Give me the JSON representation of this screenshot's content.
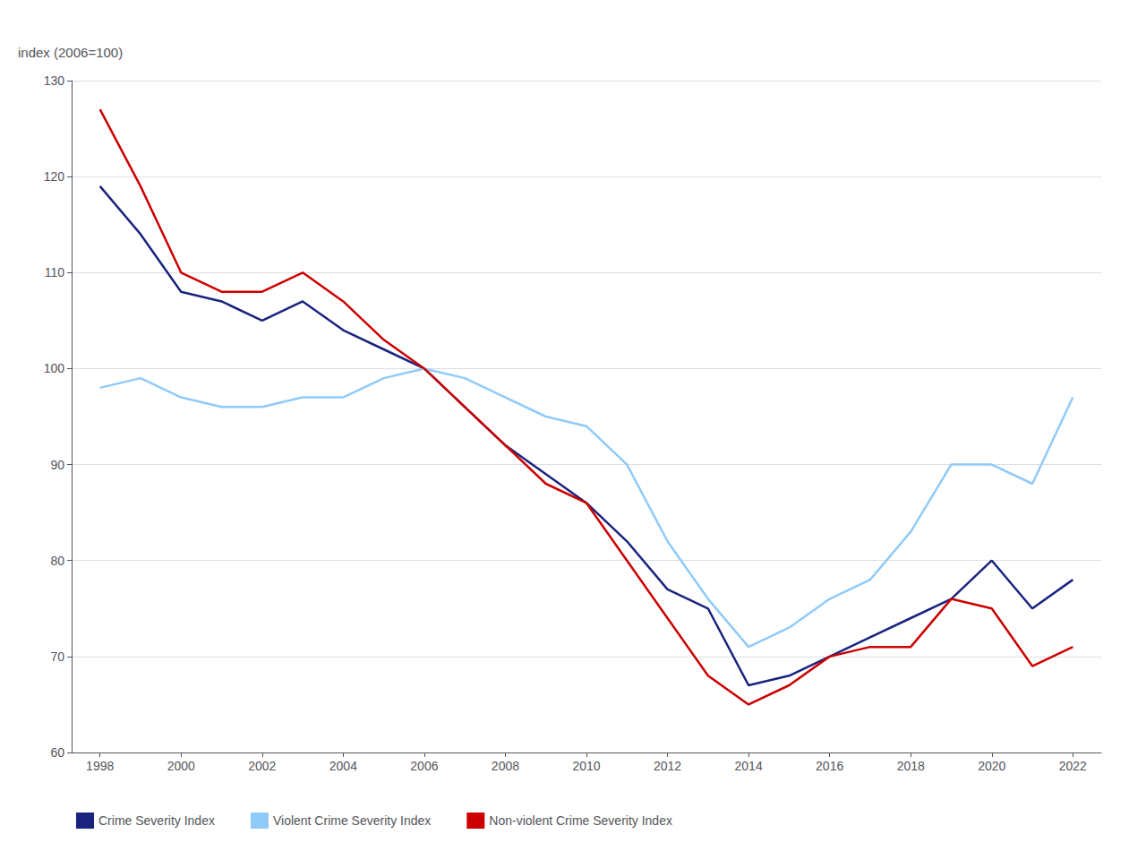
{
  "chart_data": {
    "type": "line",
    "ylabel": "index (2006=100)",
    "x": [
      1998,
      1999,
      2000,
      2001,
      2002,
      2003,
      2004,
      2005,
      2006,
      2007,
      2008,
      2009,
      2010,
      2011,
      2012,
      2013,
      2014,
      2015,
      2016,
      2017,
      2018,
      2019,
      2020,
      2021,
      2022
    ],
    "series": [
      {
        "name": "Crime Severity Index",
        "color": "#1a237e",
        "values": [
          119,
          114,
          108,
          107,
          105,
          107,
          104,
          102,
          100,
          96,
          92,
          89,
          86,
          82,
          77,
          75,
          67,
          68,
          70,
          72,
          74,
          76,
          80,
          75,
          78
        ]
      },
      {
        "name": "Violent Crime Severity Index",
        "color": "#90caf9",
        "values": [
          98,
          99,
          97,
          96,
          96,
          97,
          97,
          99,
          100,
          99,
          97,
          95,
          94,
          90,
          82,
          76,
          71,
          73,
          76,
          78,
          83,
          90,
          90,
          88,
          97
        ]
      },
      {
        "name": "Non-violent Crime Severity Index",
        "color": "#cc0000",
        "values": [
          127,
          119,
          110,
          108,
          108,
          110,
          107,
          103,
          100,
          96,
          92,
          88,
          86,
          80,
          74,
          68,
          65,
          67,
          70,
          71,
          71,
          76,
          75,
          69,
          71
        ]
      }
    ],
    "xlim": [
      1997.3,
      2022.7
    ],
    "xticks": [
      1998,
      2000,
      2002,
      2004,
      2006,
      2008,
      2010,
      2012,
      2014,
      2016,
      2018,
      2020,
      2022
    ],
    "ylim": [
      60,
      130
    ],
    "yticks": [
      60,
      70,
      80,
      90,
      100,
      110,
      120,
      130
    ],
    "grid": "y",
    "legend": "bottom"
  }
}
